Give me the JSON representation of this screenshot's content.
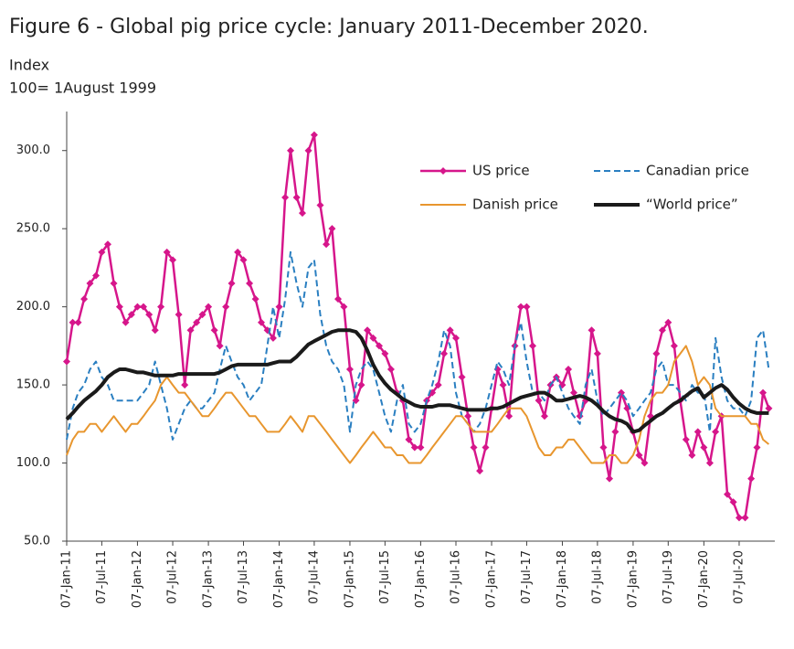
{
  "chart_data": {
    "type": "line",
    "title": "Figure 6 - Global pig price cycle: January 2011-December 2020.",
    "ylabel": "Index",
    "subtitle": "100= 1August 1999",
    "x": [
      "2011-01-07",
      "2011-02-07",
      "2011-03-07",
      "2011-04-07",
      "2011-05-07",
      "2011-06-07",
      "2011-07-07",
      "2011-08-07",
      "2011-09-07",
      "2011-10-07",
      "2011-11-07",
      "2011-12-07",
      "2012-01-07",
      "2012-02-07",
      "2012-03-07",
      "2012-04-07",
      "2012-05-07",
      "2012-06-07",
      "2012-07-07",
      "2012-08-07",
      "2012-09-07",
      "2012-10-07",
      "2012-11-07",
      "2012-12-07",
      "2013-01-07",
      "2013-02-07",
      "2013-03-07",
      "2013-04-07",
      "2013-05-07",
      "2013-06-07",
      "2013-07-07",
      "2013-08-07",
      "2013-09-07",
      "2013-10-07",
      "2013-11-07",
      "2013-12-07",
      "2014-01-07",
      "2014-02-07",
      "2014-03-07",
      "2014-04-07",
      "2014-05-07",
      "2014-06-07",
      "2014-07-07",
      "2014-08-07",
      "2014-09-07",
      "2014-10-07",
      "2014-11-07",
      "2014-12-07",
      "2015-01-07",
      "2015-02-07",
      "2015-03-07",
      "2015-04-07",
      "2015-05-07",
      "2015-06-07",
      "2015-07-07",
      "2015-08-07",
      "2015-09-07",
      "2015-10-07",
      "2015-11-07",
      "2015-12-07",
      "2016-01-07",
      "2016-02-07",
      "2016-03-07",
      "2016-04-07",
      "2016-05-07",
      "2016-06-07",
      "2016-07-07",
      "2016-08-07",
      "2016-09-07",
      "2016-10-07",
      "2016-11-07",
      "2016-12-07",
      "2017-01-07",
      "2017-02-07",
      "2017-03-07",
      "2017-04-07",
      "2017-05-07",
      "2017-06-07",
      "2017-07-07",
      "2017-08-07",
      "2017-09-07",
      "2017-10-07",
      "2017-11-07",
      "2017-12-07",
      "2018-01-07",
      "2018-02-07",
      "2018-03-07",
      "2018-04-07",
      "2018-05-07",
      "2018-06-07",
      "2018-07-07",
      "2018-08-07",
      "2018-09-07",
      "2018-10-07",
      "2018-11-07",
      "2018-12-07",
      "2019-01-07",
      "2019-02-07",
      "2019-03-07",
      "2019-04-07",
      "2019-05-07",
      "2019-06-07",
      "2019-07-07",
      "2019-08-07",
      "2019-09-07",
      "2019-10-07",
      "2019-11-07",
      "2019-12-07",
      "2020-01-07",
      "2020-02-07",
      "2020-03-07",
      "2020-04-07",
      "2020-05-07",
      "2020-06-07",
      "2020-07-07",
      "2020-08-07",
      "2020-09-07",
      "2020-10-07",
      "2020-11-07",
      "2020-12-07"
    ],
    "series": [
      {
        "name": "US price",
        "color": "#d6168b",
        "style": "marker",
        "values": [
          165,
          190,
          190,
          205,
          215,
          220,
          235,
          240,
          215,
          200,
          190,
          195,
          200,
          200,
          195,
          185,
          200,
          235,
          230,
          195,
          150,
          185,
          190,
          195,
          200,
          185,
          175,
          200,
          215,
          235,
          230,
          215,
          205,
          190,
          185,
          180,
          200,
          270,
          300,
          270,
          260,
          300,
          310,
          265,
          240,
          250,
          205,
          200,
          160,
          140,
          150,
          185,
          180,
          175,
          170,
          160,
          145,
          140,
          115,
          110,
          110,
          140,
          145,
          150,
          170,
          185,
          180,
          155,
          130,
          110,
          95,
          110,
          135,
          160,
          150,
          130,
          175,
          200,
          200,
          175,
          140,
          130,
          150,
          155,
          150,
          160,
          145,
          130,
          140,
          185,
          170,
          110,
          90,
          120,
          145,
          135,
          120,
          105,
          100,
          130,
          170,
          185,
          190,
          175,
          140,
          115,
          105,
          120,
          110,
          100,
          120,
          130,
          80,
          75,
          65,
          65,
          90,
          110,
          145,
          135
        ]
      },
      {
        "name": "Canadian price",
        "color": "#2a7fc1",
        "style": "dashed",
        "values": [
          115,
          135,
          145,
          150,
          160,
          165,
          155,
          150,
          140,
          140,
          140,
          140,
          140,
          145,
          150,
          165,
          150,
          135,
          115,
          125,
          135,
          140,
          135,
          135,
          140,
          145,
          160,
          175,
          165,
          155,
          150,
          140,
          145,
          150,
          175,
          200,
          180,
          205,
          235,
          215,
          200,
          225,
          230,
          195,
          175,
          165,
          160,
          150,
          120,
          150,
          160,
          165,
          160,
          145,
          130,
          120,
          140,
          150,
          125,
          120,
          125,
          140,
          150,
          165,
          185,
          175,
          145,
          130,
          125,
          120,
          125,
          135,
          150,
          165,
          160,
          150,
          175,
          190,
          165,
          145,
          145,
          140,
          150,
          155,
          145,
          135,
          130,
          125,
          150,
          160,
          140,
          130,
          135,
          140,
          145,
          140,
          130,
          135,
          140,
          145,
          160,
          165,
          150,
          150,
          145,
          140,
          150,
          145,
          145,
          120,
          180,
          155,
          140,
          135,
          135,
          130,
          140,
          180,
          185,
          160
        ]
      },
      {
        "name": "Danish price",
        "color": "#e8962e",
        "style": "solid",
        "values": [
          105,
          115,
          120,
          120,
          125,
          125,
          120,
          125,
          130,
          125,
          120,
          125,
          125,
          130,
          135,
          140,
          150,
          155,
          150,
          145,
          145,
          140,
          135,
          130,
          130,
          135,
          140,
          145,
          145,
          140,
          135,
          130,
          130,
          125,
          120,
          120,
          120,
          125,
          130,
          125,
          120,
          130,
          130,
          125,
          120,
          115,
          110,
          105,
          100,
          105,
          110,
          115,
          120,
          115,
          110,
          110,
          105,
          105,
          100,
          100,
          100,
          105,
          110,
          115,
          120,
          125,
          130,
          130,
          125,
          120,
          120,
          120,
          120,
          125,
          130,
          135,
          135,
          135,
          130,
          120,
          110,
          105,
          105,
          110,
          110,
          115,
          115,
          110,
          105,
          100,
          100,
          100,
          105,
          105,
          100,
          100,
          105,
          115,
          130,
          140,
          145,
          145,
          150,
          165,
          170,
          175,
          165,
          150,
          155,
          150,
          135,
          130,
          130,
          130,
          130,
          130,
          125,
          125,
          115,
          112
        ]
      },
      {
        "name": "“World price”",
        "color": "#1a1a1a",
        "style": "thick",
        "values": [
          128,
          132,
          136,
          140,
          143,
          146,
          150,
          155,
          158,
          160,
          160,
          159,
          158,
          158,
          157,
          156,
          156,
          156,
          156,
          157,
          157,
          157,
          157,
          157,
          157,
          157,
          158,
          160,
          162,
          163,
          163,
          163,
          163,
          163,
          163,
          164,
          165,
          165,
          165,
          168,
          172,
          176,
          178,
          180,
          182,
          184,
          185,
          185,
          185,
          184,
          180,
          172,
          163,
          156,
          151,
          147,
          144,
          141,
          139,
          137,
          136,
          136,
          136,
          137,
          137,
          137,
          136,
          135,
          134,
          134,
          134,
          134,
          135,
          135,
          136,
          138,
          140,
          142,
          143,
          144,
          145,
          145,
          143,
          140,
          140,
          141,
          142,
          143,
          142,
          140,
          137,
          133,
          130,
          128,
          127,
          125,
          120,
          121,
          124,
          127,
          130,
          132,
          135,
          138,
          140,
          143,
          146,
          148,
          142,
          145,
          148,
          150,
          147,
          142,
          138,
          135,
          133,
          132,
          132,
          132
        ]
      }
    ],
    "xlim": [
      "2011-01-07",
      "2021-01-07"
    ],
    "xticks": [
      {
        "value": "2011-01-07",
        "label": "07-Jan-11"
      },
      {
        "value": "2011-07-07",
        "label": "07-Jul-11"
      },
      {
        "value": "2012-01-07",
        "label": "07-Jan-12"
      },
      {
        "value": "2012-07-07",
        "label": "07-Jul-12"
      },
      {
        "value": "2013-01-07",
        "label": "07-Jan-13"
      },
      {
        "value": "2013-07-07",
        "label": "07-Jul-13"
      },
      {
        "value": "2014-01-07",
        "label": "07-Jan-14"
      },
      {
        "value": "2014-07-07",
        "label": "07-Jul-14"
      },
      {
        "value": "2015-01-07",
        "label": "07-Jan-15"
      },
      {
        "value": "2015-07-07",
        "label": "07-Jul-15"
      },
      {
        "value": "2016-01-07",
        "label": "07-Jan-16"
      },
      {
        "value": "2016-07-07",
        "label": "07-Jul-16"
      },
      {
        "value": "2017-01-07",
        "label": "07-Jan-17"
      },
      {
        "value": "2017-07-07",
        "label": "07-Jul-17"
      },
      {
        "value": "2018-01-07",
        "label": "07-Jan-18"
      },
      {
        "value": "2018-07-07",
        "label": "07-Jul-18"
      },
      {
        "value": "2019-01-07",
        "label": "07-Jan-19"
      },
      {
        "value": "2019-07-07",
        "label": "07-Jul-19"
      },
      {
        "value": "2020-01-07",
        "label": "07-Jan-20"
      },
      {
        "value": "2020-07-07",
        "label": "07-Jul-20"
      }
    ],
    "ylim": [
      50,
      325
    ],
    "yticks": [
      {
        "value": 50,
        "label": "50.0"
      },
      {
        "value": 100,
        "label": "100.0"
      },
      {
        "value": 150,
        "label": "150.0"
      },
      {
        "value": 200,
        "label": "200.0"
      },
      {
        "value": 250,
        "label": "250.0"
      },
      {
        "value": 300,
        "label": "300.0"
      }
    ],
    "legend": "upper right",
    "grid": false
  }
}
